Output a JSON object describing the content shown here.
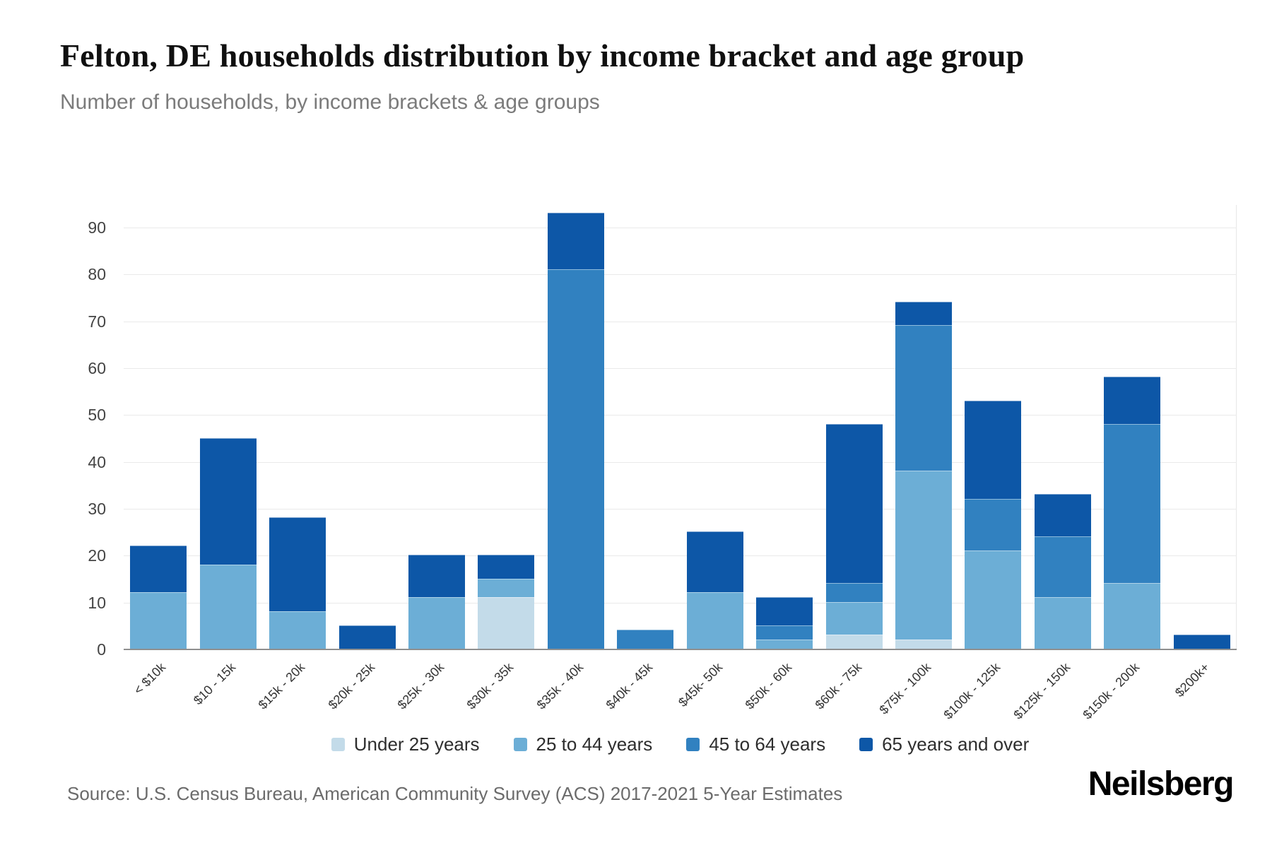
{
  "page": {
    "title": "Felton, DE households distribution by income bracket and age group",
    "subtitle": "Number of households, by income brackets & age groups",
    "source": "Source: U.S. Census Bureau, American Community Survey (ACS) 2017-2021 5-Year Estimates",
    "brand": "Neilsberg"
  },
  "chart_data": {
    "type": "bar",
    "stacked": true,
    "title": "Felton, DE households distribution by income bracket and age group",
    "xlabel": "",
    "ylabel": "Number of households",
    "grid": true,
    "legend_position": "bottom",
    "ylim": [
      0,
      95
    ],
    "yticks": [
      0,
      10,
      20,
      30,
      40,
      50,
      60,
      70,
      80,
      90
    ],
    "categories": [
      "< $10k",
      "$10 - 15k",
      "$15k - 20k",
      "$20k - 25k",
      "$25k - 30k",
      "$30k - 35k",
      "$35k - 40k",
      "$40k - 45k",
      "$45k- 50k",
      "$50k - 60k",
      "$60k - 75k",
      "$75k - 100k",
      "$100k - 125k",
      "$125k - 150k",
      "$150k - 200k",
      "$200k+"
    ],
    "series": [
      {
        "name": "Under 25 years",
        "color": "#c3dbe9",
        "values": [
          0,
          0,
          0,
          0,
          0,
          11,
          0,
          0,
          0,
          0,
          3,
          2,
          0,
          0,
          0,
          0
        ]
      },
      {
        "name": "25 to 44 years",
        "color": "#6caed6",
        "values": [
          12,
          18,
          8,
          0,
          11,
          4,
          0,
          0,
          12,
          2,
          7,
          36,
          21,
          11,
          14,
          0
        ]
      },
      {
        "name": "45 to 64 years",
        "color": "#3181c0",
        "values": [
          0,
          0,
          0,
          0,
          0,
          0,
          81,
          4,
          0,
          3,
          4,
          31,
          11,
          13,
          34,
          0
        ]
      },
      {
        "name": "65 years and over",
        "color": "#0d57a7",
        "values": [
          10,
          27,
          20,
          5,
          9,
          5,
          12,
          0,
          13,
          6,
          34,
          5,
          21,
          9,
          10,
          3
        ]
      }
    ],
    "totals": [
      22,
      45,
      28,
      5,
      20,
      20,
      93,
      4,
      25,
      11,
      48,
      74,
      53,
      33,
      58,
      3
    ]
  }
}
